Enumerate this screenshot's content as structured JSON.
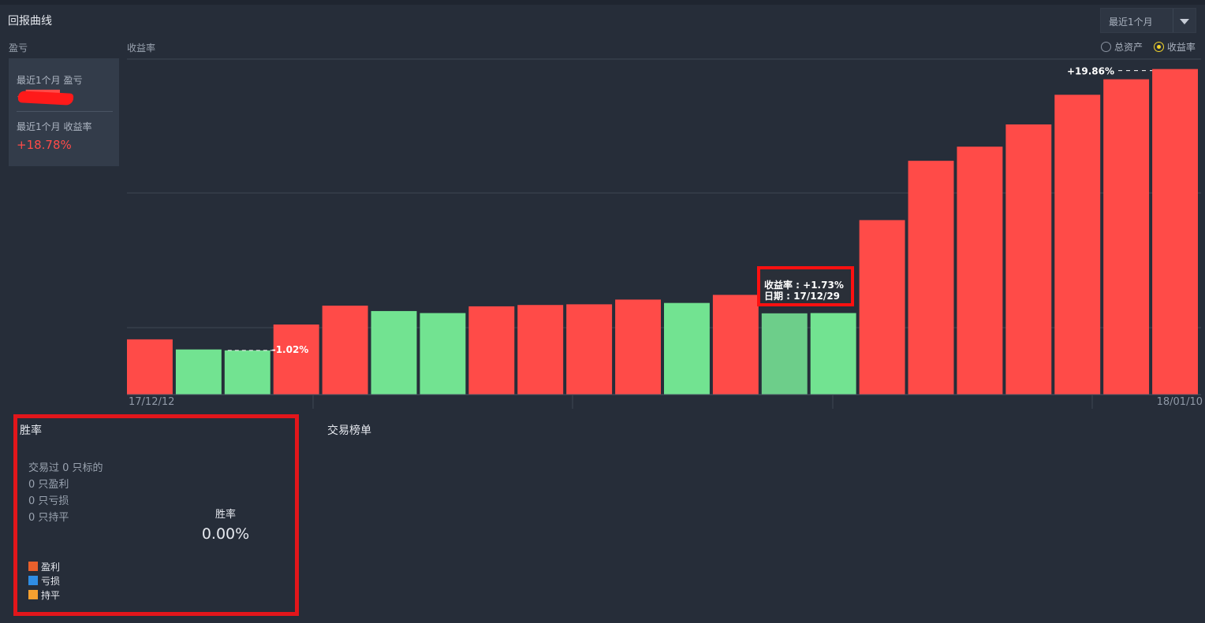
{
  "header": {
    "title": "回报曲线",
    "period_select": "最近1个月"
  },
  "left_panel": {
    "section_label": "盈亏",
    "pl_label": "最近1个月 盈亏",
    "pl_value": "+████",
    "return_label": "最近1个月 收益率",
    "return_value": "+18.78%"
  },
  "chart_header": {
    "label": "收益率",
    "options": [
      {
        "label": "总资产",
        "selected": false
      },
      {
        "label": "收益率",
        "selected": true
      }
    ]
  },
  "chart_data": {
    "type": "bar",
    "ylabel": "收益率",
    "ylim": [
      -4.3,
      20.6
    ],
    "unit": "%",
    "x_start_label": "17/12/12",
    "x_end_label": "18/01/10",
    "values": [
      -0.2,
      -0.95,
      -1.02,
      0.9,
      2.3,
      1.9,
      1.75,
      2.25,
      2.35,
      2.4,
      2.75,
      2.5,
      3.1,
      1.73,
      1.75,
      8.65,
      13.05,
      14.1,
      15.75,
      17.95,
      19.1,
      19.86
    ],
    "colors": [
      "#ff4b48",
      "#72e391",
      "#72e391",
      "#ff4b48",
      "#ff4b48",
      "#72e391",
      "#72e391",
      "#ff4b48",
      "#ff4b48",
      "#ff4b48",
      "#ff4b48",
      "#72e391",
      "#ff4b48",
      "#6dce8a",
      "#72e391",
      "#ff4b48",
      "#ff4b48",
      "#ff4b48",
      "#ff4b48",
      "#ff4b48",
      "#ff4b48",
      "#ff4b48"
    ],
    "annotations": [
      {
        "index": 2,
        "text": "-1.02%"
      },
      {
        "index": 21,
        "text": "+19.86%"
      }
    ],
    "tooltip": {
      "index": 13,
      "line1": "收益率 : +1.73%",
      "line2": "日期 : 17/12/29"
    },
    "colors_ref": {
      "gain": "#ff4b48",
      "loss": "#72e391",
      "hover": "#6dce8a",
      "grid": "#3e4654"
    }
  },
  "win_rate": {
    "title": "胜率",
    "stats": [
      "交易过 0 只标的",
      "0 只盈利",
      "0 只亏损",
      "0 只持平"
    ],
    "center_label": "胜率",
    "center_value": "0.00%",
    "legend": [
      {
        "label": "盈利",
        "color": "#e8602c"
      },
      {
        "label": "亏损",
        "color": "#2f8de4"
      },
      {
        "label": "持平",
        "color": "#f5a030"
      }
    ]
  },
  "ranking": {
    "title": "交易榜单"
  }
}
